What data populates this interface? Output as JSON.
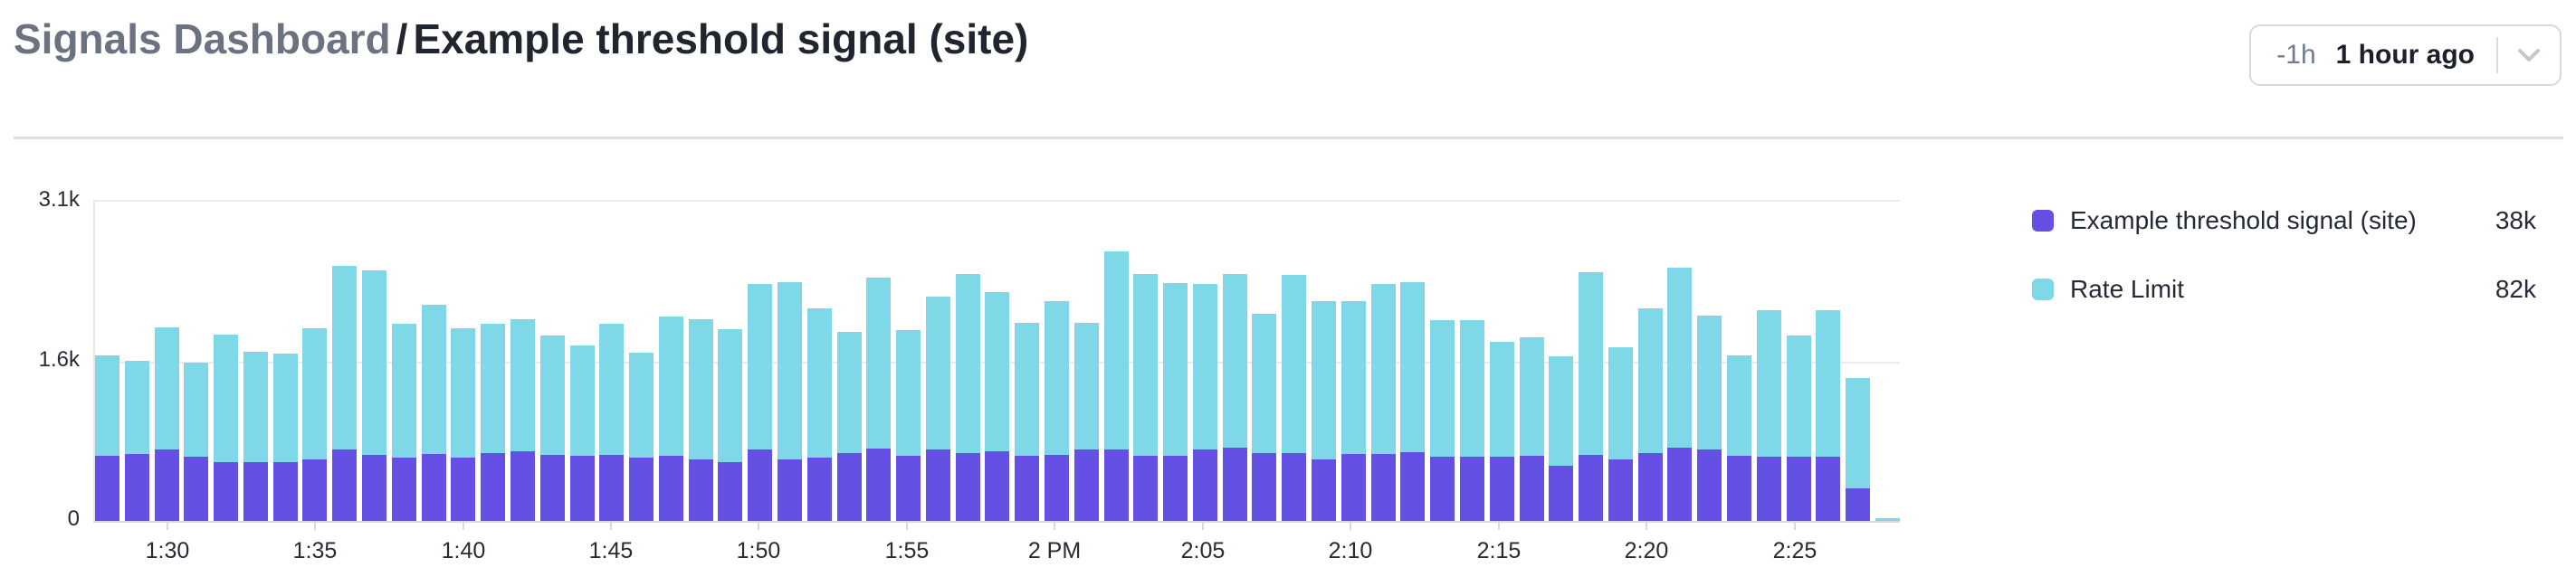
{
  "header": {
    "breadcrumb": "Signals Dashboard",
    "separator": "/",
    "title": "Example threshold signal (site)",
    "time_range": {
      "shortcut": "-1h",
      "label": "1 hour ago"
    }
  },
  "legend": {
    "items": [
      {
        "label": "Example threshold signal (site)",
        "value": "38k",
        "color": "#6550e5"
      },
      {
        "label": "Rate Limit",
        "value": "82k",
        "color": "#7ed8e7"
      }
    ]
  },
  "chart_data": {
    "type": "bar",
    "stacked": true,
    "ylim": [
      0,
      3100
    ],
    "grid": true,
    "legend_position": "right",
    "y_ticks": [
      {
        "value": 0,
        "label": "0"
      },
      {
        "value": 1550,
        "label": "1.6k"
      },
      {
        "value": 3100,
        "label": "3.1k"
      }
    ],
    "x_tick_labels": [
      "1:30",
      "1:35",
      "1:40",
      "1:45",
      "1:50",
      "1:55",
      "2 PM",
      "2:05",
      "2:10",
      "2:15",
      "2:20",
      "2:25"
    ],
    "x_tick_bar_indices": [
      2,
      7,
      12,
      17,
      22,
      27,
      32,
      37,
      42,
      47,
      52,
      57
    ],
    "series": [
      {
        "name": "Example threshold signal (site)",
        "color": "#6550e5",
        "total_label": "38k",
        "values": [
          628,
          646,
          690,
          620,
          575,
          575,
          575,
          593,
          690,
          637,
          611,
          646,
          611,
          655,
          673,
          637,
          628,
          637,
          611,
          628,
          593,
          575,
          690,
          593,
          611,
          655,
          699,
          628,
          690,
          655,
          673,
          628,
          637,
          690,
          690,
          628,
          628,
          690,
          708,
          655,
          655,
          593,
          646,
          646,
          664,
          620,
          620,
          620,
          628,
          540,
          637,
          593,
          655,
          708,
          690,
          628,
          620,
          620,
          620,
          319,
          0
        ]
      },
      {
        "name": "Rate Limit",
        "color": "#7ed8e7",
        "total_label": "82k",
        "values": [
          974,
          903,
          1186,
          911,
          1239,
          1071,
          1053,
          1274,
          1779,
          1788,
          1301,
          1451,
          1256,
          1257,
          1283,
          1160,
          1071,
          1275,
          1017,
          1354,
          1363,
          1292,
          1611,
          1717,
          1451,
          1177,
          1664,
          1222,
          1487,
          1735,
          1548,
          1292,
          1496,
          1230,
          1921,
          1762,
          1673,
          1611,
          1690,
          1354,
          1726,
          1540,
          1487,
          1655,
          1655,
          1327,
          1327,
          1115,
          1151,
          1062,
          1770,
          1089,
          1407,
          1744,
          1301,
          974,
          1424,
          1177,
          1424,
          1070,
          27
        ]
      }
    ]
  }
}
